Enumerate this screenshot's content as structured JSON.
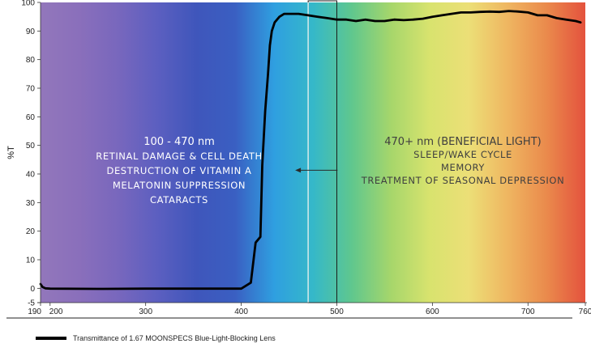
{
  "chart_data": {
    "type": "line",
    "title": "",
    "xlabel": "",
    "ylabel": "%T",
    "xlim": [
      190,
      760
    ],
    "ylim": [
      -5,
      100
    ],
    "x_ticks": [
      {
        "value": 190,
        "label": "190"
      },
      {
        "value": 200,
        "label": "200"
      },
      {
        "value": 300,
        "label": "300"
      },
      {
        "value": 400,
        "label": "400"
      },
      {
        "value": 500,
        "label": "500"
      },
      {
        "value": 600,
        "label": "600"
      },
      {
        "value": 700,
        "label": "700"
      },
      {
        "value": 760,
        "label": "760"
      }
    ],
    "y_ticks": [
      -5,
      0,
      10,
      20,
      30,
      40,
      50,
      60,
      70,
      80,
      90,
      100
    ],
    "grid": false,
    "legend_position": "bottom-left",
    "background": "visible light spectrum gradient",
    "spectrum_colors": [
      "#9277bb",
      "#8a6fbb",
      "#7867bd",
      "#5c5fc0",
      "#3f56bb",
      "#3a5fc2",
      "#2f9fe0",
      "#35b8c9",
      "#5fc78e",
      "#a6d66b",
      "#d8e36e",
      "#ecdf77",
      "#efb661",
      "#ea8a4c",
      "#e4523d"
    ],
    "series": [
      {
        "name": "Transmittance of 1.67 MOONSPECS Blue-Light-Blocking Lens",
        "color": "#000000",
        "x": [
          190,
          192,
          195,
          200,
          250,
          300,
          350,
          400,
          410,
          415,
          420,
          422,
          425,
          428,
          430,
          432,
          435,
          440,
          445,
          450,
          460,
          470,
          480,
          490,
          500,
          510,
          520,
          530,
          540,
          550,
          560,
          570,
          580,
          590,
          600,
          610,
          620,
          630,
          640,
          650,
          660,
          670,
          680,
          690,
          700,
          710,
          720,
          730,
          740,
          750,
          755
        ],
        "y": [
          1.5,
          0.5,
          0,
          -0.1,
          -0.2,
          -0.1,
          -0.1,
          -0.1,
          2,
          16,
          18,
          43,
          62,
          75,
          85,
          90,
          93,
          95,
          96,
          96,
          96,
          95.5,
          95,
          94.5,
          94,
          94,
          93.5,
          94,
          93.5,
          93.5,
          94,
          93.8,
          94,
          94.3,
          95,
          95.5,
          96,
          96.5,
          96.5,
          96.7,
          96.8,
          96.7,
          97,
          96.8,
          96.5,
          95.5,
          95.5,
          94.5,
          94,
          93.5,
          93
        ]
      }
    ],
    "annotations": [
      {
        "lines": [
          "100 - 470 nm",
          "RETINAL DAMAGE & CELL DEATH",
          "DESTRUCTION OF VITAMIN A",
          "MELATONIN SUPPRESSION",
          "CATARACTS"
        ]
      },
      {
        "lines": [
          "470+ nm (BENEFICIAL LIGHT)",
          "SLEEP/WAKE CYCLE",
          "MEMORY",
          "TREATMENT OF SEASONAL DEPRESSION"
        ]
      }
    ],
    "highlight_box": {
      "x_start": 470,
      "x_end": 500
    },
    "arrow": {
      "from_x": 505,
      "to_x": 470,
      "y": 45
    }
  }
}
